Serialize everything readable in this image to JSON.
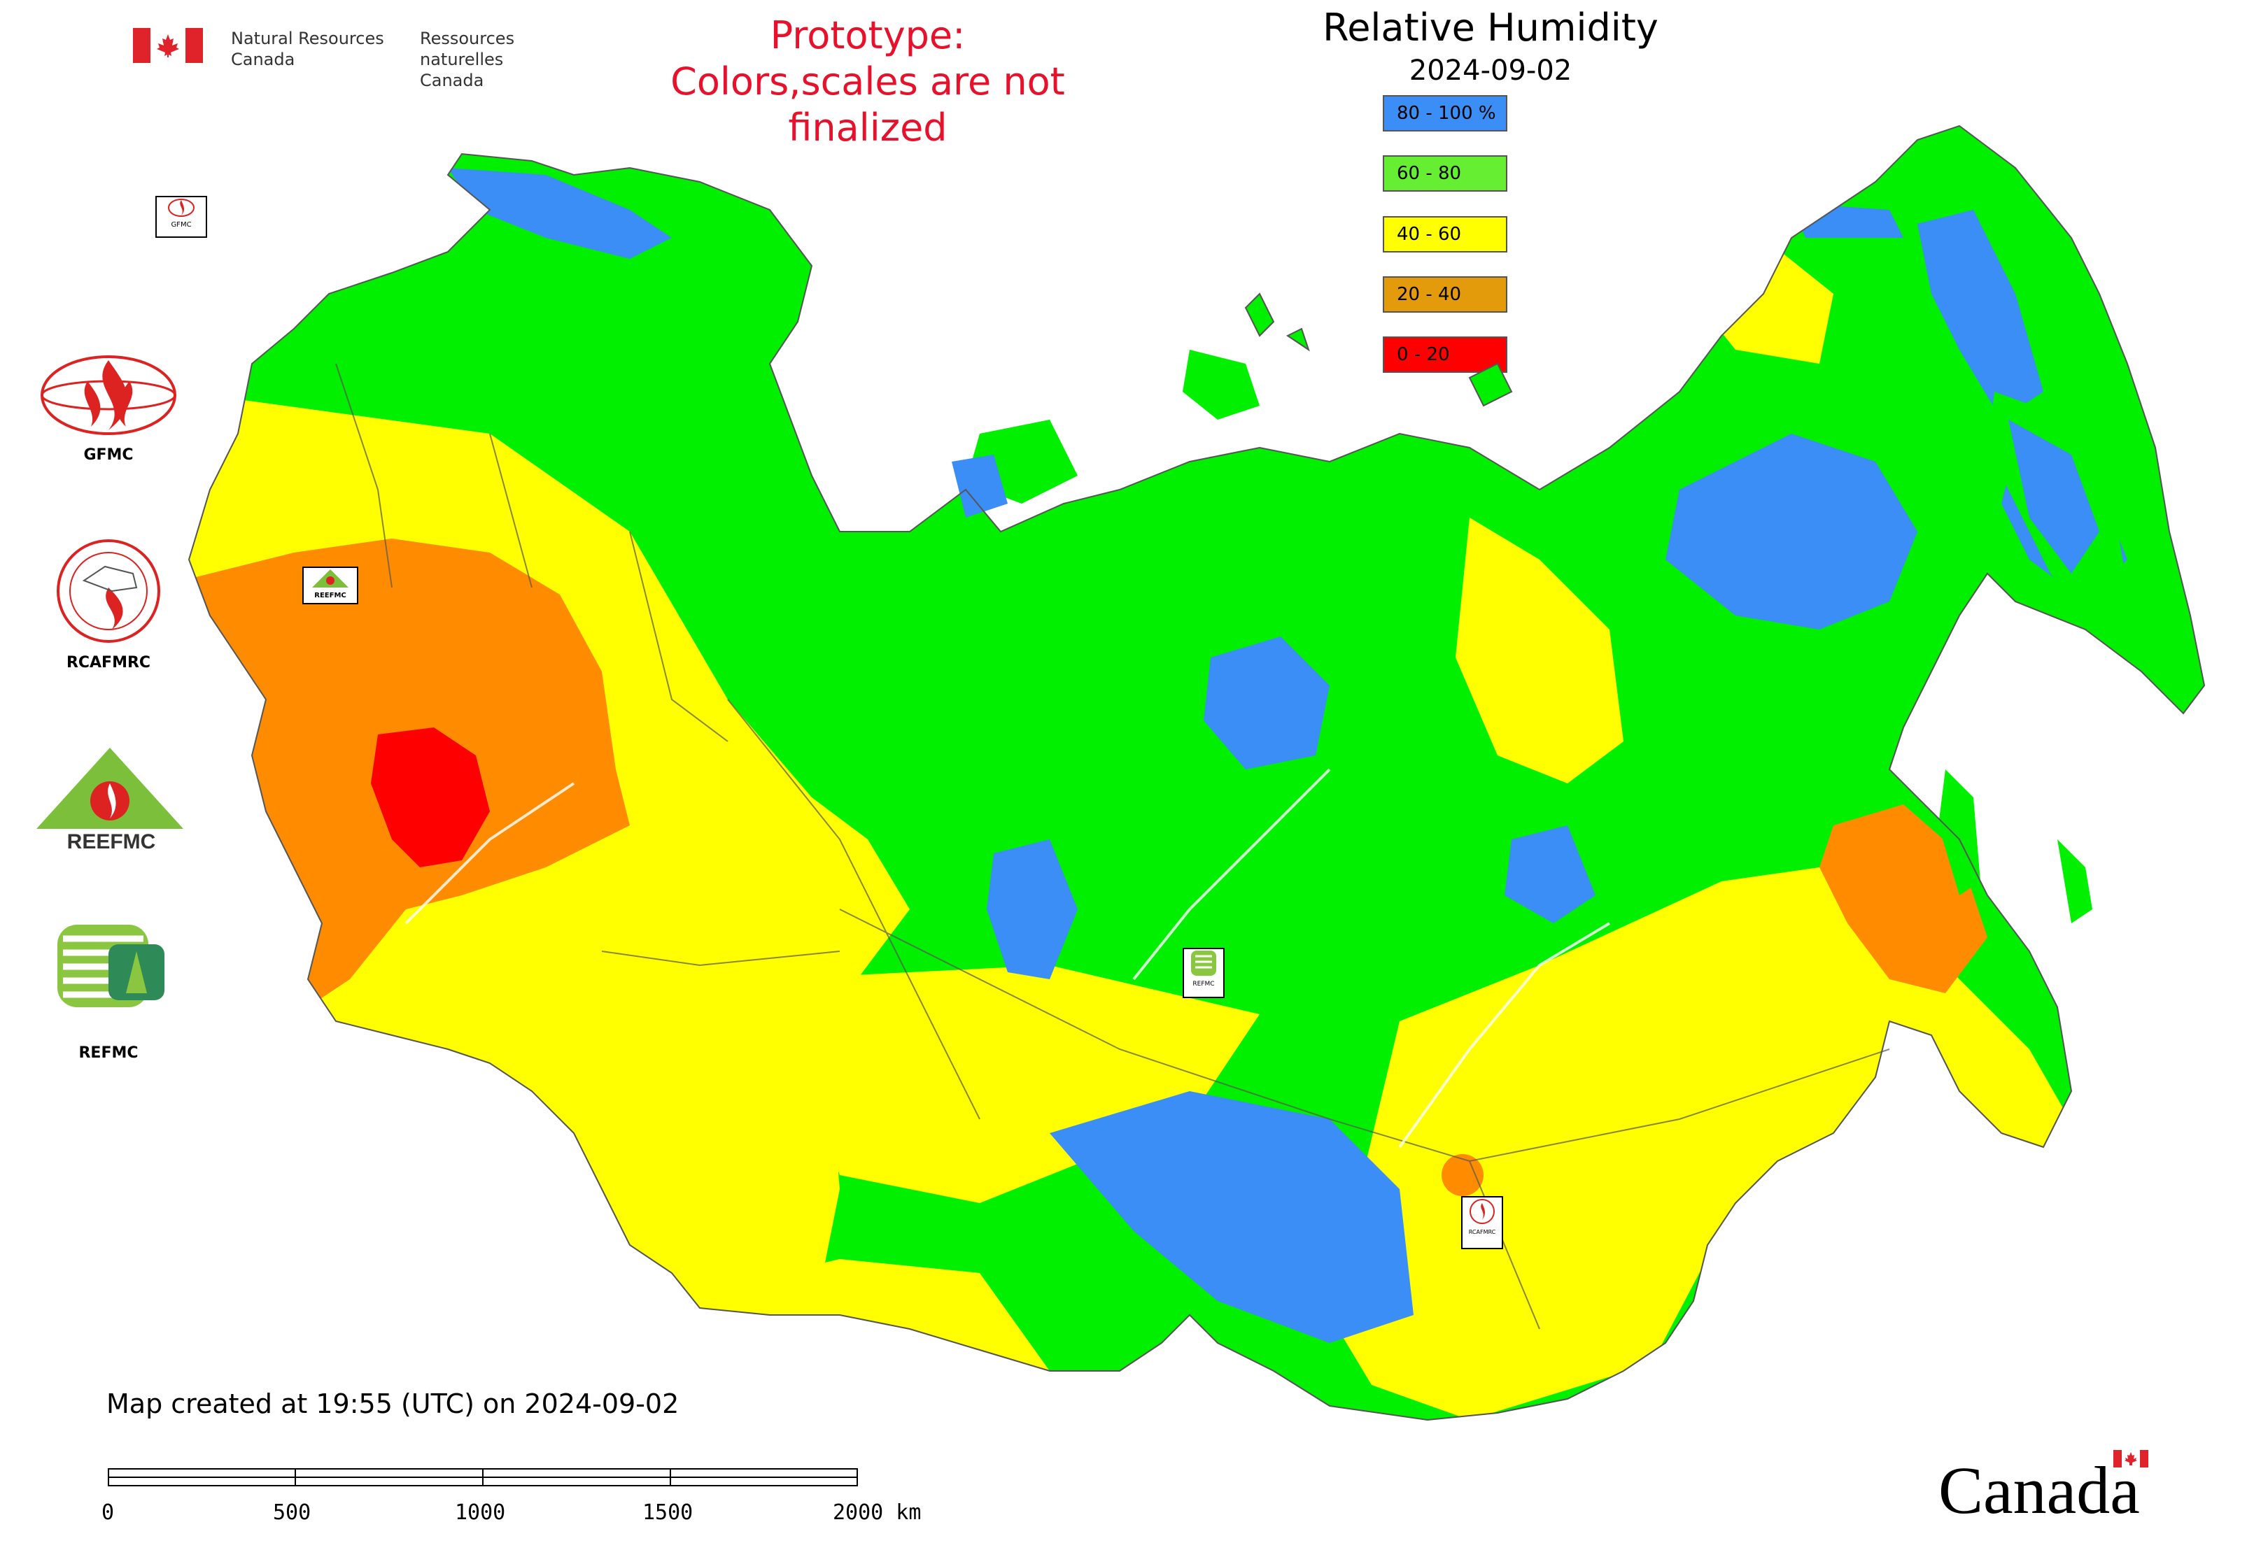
{
  "header": {
    "dept_en_line1": "Natural Resources",
    "dept_en_line2": "Canada",
    "dept_fr_line1": "Ressources naturelles",
    "dept_fr_line2": "Canada",
    "prototype_line1": "Prototype:",
    "prototype_line2": "Colors,scales are not finalized",
    "title": "Relative Humidity",
    "date": "2024-09-02"
  },
  "legend": [
    {
      "label": "80 - 100 %",
      "color": "#3a8ef5"
    },
    {
      "label": "60 - 80",
      "color": "#66ee33"
    },
    {
      "label": "40 - 60",
      "color": "#ffff00"
    },
    {
      "label": "20 - 40",
      "color": "#e39b0b"
    },
    {
      "label": "0 - 20",
      "color": "#ff0000"
    }
  ],
  "map_colors": {
    "blue": "#3a8ef5",
    "green": "#00f000",
    "yellow": "#ffff00",
    "orange": "#ff8c00",
    "red": "#ff0000",
    "border": "#555555"
  },
  "side_logos": [
    {
      "label": "GFMC",
      "icon": "gfmc-globe-flame-icon"
    },
    {
      "label": "RCAFMRC",
      "icon": "rcafmrc-seal-icon"
    },
    {
      "label": "REEFMC",
      "icon": "reefmc-triangle-icon"
    },
    {
      "label": "REFMC",
      "icon": "refmc-logo-icon"
    }
  ],
  "map_markers": [
    {
      "label": "GFMC"
    },
    {
      "label": "REEFMC"
    },
    {
      "label": "REFMC"
    },
    {
      "label": "RCAFMRC"
    }
  ],
  "footer": {
    "created": "Map created at 19:55 (UTC) on 2024-09-02",
    "scale_labels": [
      "0",
      "500",
      "1000",
      "1500",
      "2000 km"
    ],
    "wordmark": "Canada"
  }
}
